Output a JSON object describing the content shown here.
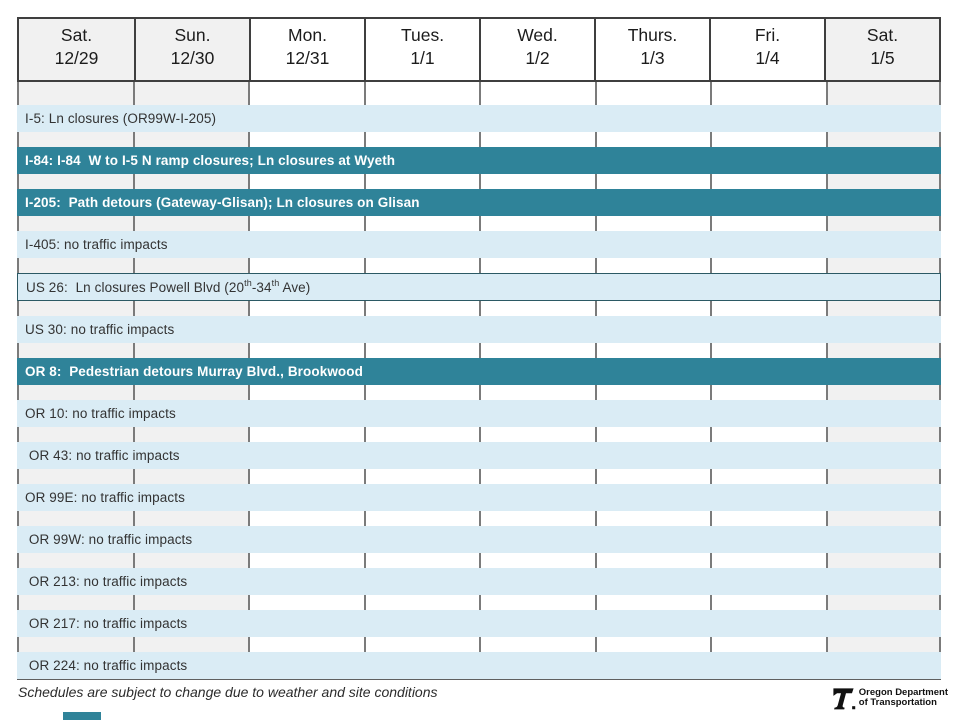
{
  "header": {
    "days": [
      {
        "label": "Sat.",
        "date": "12/29",
        "weekend": true
      },
      {
        "label": "Sun.",
        "date": "12/30",
        "weekend": true
      },
      {
        "label": "Mon.",
        "date": "12/31",
        "weekend": false
      },
      {
        "label": "Tues.",
        "date": "1/1",
        "weekend": false
      },
      {
        "label": "Wed.",
        "date": "1/2",
        "weekend": false
      },
      {
        "label": "Thurs.",
        "date": "1/3",
        "weekend": false
      },
      {
        "label": "Fri.",
        "date": "1/4",
        "weekend": false
      },
      {
        "label": "Sat.",
        "date": "1/5",
        "weekend": true
      }
    ]
  },
  "rows": [
    {
      "id": "i-5",
      "style": "light",
      "parts": [
        {
          "text": "I-5: Ln closures (OR99W-I-205)"
        }
      ]
    },
    {
      "id": "i-84",
      "style": "dark",
      "parts": [
        {
          "text": "I-84: I-84  W to I-5 N ramp closures; Ln closures at Wyeth"
        }
      ]
    },
    {
      "id": "i-205",
      "style": "dark",
      "parts": [
        {
          "text": "I-205:  Path detours (Gateway-Glisan); Ln closures on Glisan"
        }
      ]
    },
    {
      "id": "i-405",
      "style": "light",
      "parts": [
        {
          "text": "I-405: no traffic impacts"
        }
      ]
    },
    {
      "id": "us-26",
      "style": "light_bordered",
      "parts": [
        {
          "text": "US 26:  Ln closures Powell Blvd (20"
        },
        {
          "text": "th",
          "sup": true
        },
        {
          "text": "-34"
        },
        {
          "text": "th",
          "sup": true
        },
        {
          "text": " Ave)"
        }
      ]
    },
    {
      "id": "us-30",
      "style": "light",
      "parts": [
        {
          "text": "US 30: no traffic impacts"
        }
      ]
    },
    {
      "id": "or-8",
      "style": "dark",
      "parts": [
        {
          "text": "OR 8:  Pedestrian detours Murray Blvd., Brookwood"
        }
      ]
    },
    {
      "id": "or-10",
      "style": "light",
      "parts": [
        {
          "text": "OR 10: no traffic impacts"
        }
      ]
    },
    {
      "id": "or-43",
      "style": "light",
      "parts": [
        {
          "text": " OR 43: no traffic impacts"
        }
      ]
    },
    {
      "id": "or-99e",
      "style": "light",
      "parts": [
        {
          "text": "OR 99E: no traffic impacts"
        }
      ]
    },
    {
      "id": "or-99w",
      "style": "light",
      "parts": [
        {
          "text": " OR 99W: no traffic impacts"
        }
      ]
    },
    {
      "id": "or-213",
      "style": "light",
      "parts": [
        {
          "text": " OR 213: no traffic impacts"
        }
      ]
    },
    {
      "id": "or-217",
      "style": "light",
      "parts": [
        {
          "text": " OR 217: no traffic impacts"
        }
      ]
    },
    {
      "id": "or-224",
      "style": "light",
      "parts": [
        {
          "text": " OR 224: no traffic impacts"
        }
      ]
    }
  ],
  "footer": {
    "note": "Schedules are subject to change due to weather and site conditions",
    "logo_line1": "Oregon Department",
    "logo_line2": "of Transportation"
  },
  "colors": {
    "bar_dark": "#2f8399",
    "bar_light": "#daecf5",
    "weekend_bg": "#f1f1f1",
    "header_border": "#3f3f3f",
    "grid_line": "#7b7b7b"
  }
}
